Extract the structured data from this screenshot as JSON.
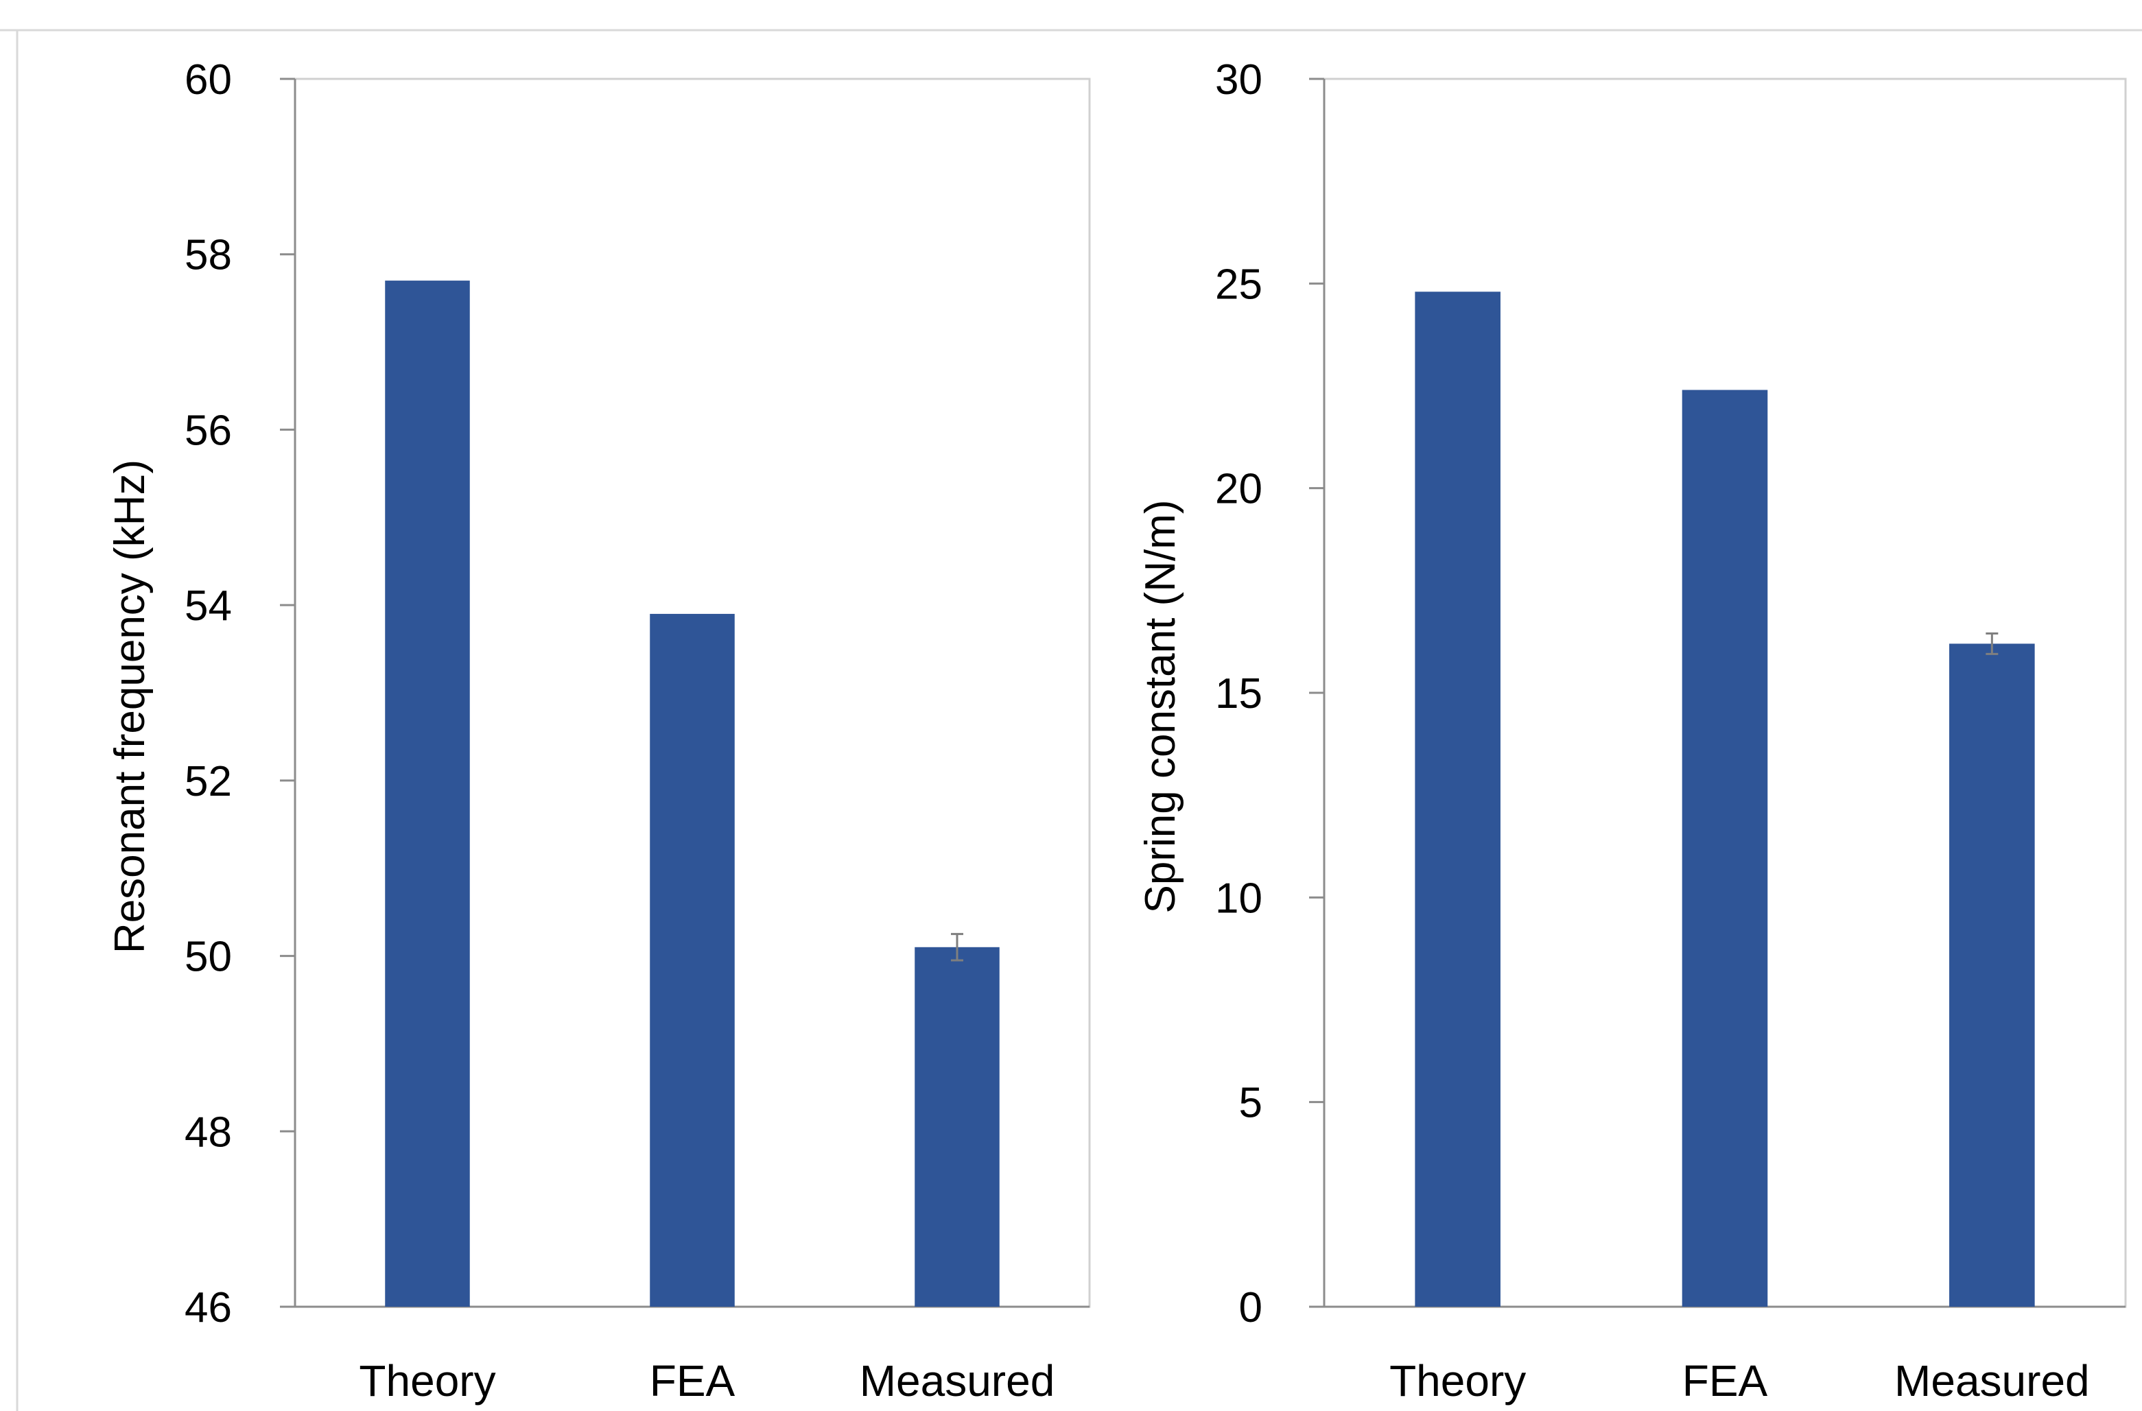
{
  "chart_data": [
    {
      "type": "bar",
      "categories": [
        "Theory",
        "FEA",
        "Measured"
      ],
      "values": [
        57.7,
        53.9,
        50.1
      ],
      "error": [
        null,
        null,
        0.15
      ],
      "ylabel": "Resonant frequency (kHz)",
      "xlabel": "",
      "title": "",
      "ylim": [
        46,
        60
      ],
      "yticks": [
        46,
        48,
        50,
        52,
        54,
        56,
        58,
        60
      ],
      "grid": false,
      "legend": false,
      "bar_color": "#2F5597"
    },
    {
      "type": "bar",
      "categories": [
        "Theory",
        "FEA",
        "Measured"
      ],
      "values": [
        24.8,
        22.4,
        16.2
      ],
      "error": [
        null,
        null,
        0.25
      ],
      "ylabel": "Spring constant (N/m)",
      "xlabel": "",
      "title": "",
      "ylim": [
        0,
        30
      ],
      "yticks": [
        0,
        5,
        10,
        15,
        20,
        25,
        30
      ],
      "grid": false,
      "legend": false,
      "bar_color": "#2F5597"
    }
  ]
}
